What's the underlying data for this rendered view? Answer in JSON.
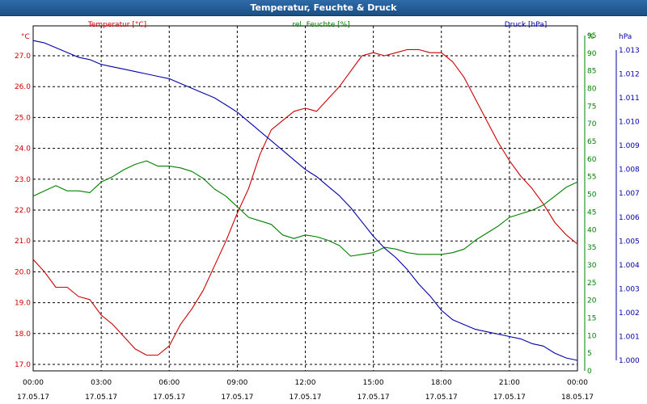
{
  "window": {
    "title": "Temperatur, Feuchte & Druck"
  },
  "chart_data": {
    "type": "line",
    "title": "Temperatur, Feuchte & Druck",
    "x_tick_labels": [
      [
        "00:00",
        "17.05.17"
      ],
      [
        "03:00",
        "17.05.17"
      ],
      [
        "06:00",
        "17.05.17"
      ],
      [
        "09:00",
        "17.05.17"
      ],
      [
        "12:00",
        "17.05.17"
      ],
      [
        "15:00",
        "17.05.17"
      ],
      [
        "18:00",
        "17.05.17"
      ],
      [
        "21:00",
        "17.05.17"
      ],
      [
        "00:00",
        "18.05.17"
      ]
    ],
    "xlim_hours": [
      0,
      24
    ],
    "grid": true,
    "axes": {
      "temperature": {
        "unit_label": "°C",
        "side": "left",
        "color": "#cc0000",
        "ylim": [
          17.0,
          27.5
        ],
        "ticks": [
          "17.0",
          "18.0",
          "19.0",
          "20.0",
          "21.0",
          "22.0",
          "23.0",
          "24.0",
          "25.0",
          "26.0",
          "27.0"
        ]
      },
      "humidity": {
        "unit_label": "%",
        "side": "right",
        "color": "#008000",
        "ylim": [
          0,
          95
        ],
        "ticks": [
          "0",
          "5",
          "10",
          "15",
          "20",
          "25",
          "30",
          "35",
          "40",
          "45",
          "50",
          "55",
          "60",
          "65",
          "70",
          "75",
          "80",
          "85",
          "90",
          "95"
        ]
      },
      "pressure": {
        "unit_label": "hPa",
        "side": "right",
        "color": "#0000aa",
        "ylim": [
          1000,
          1013.4
        ],
        "ticks": [
          "1.000",
          "1.001",
          "1.002",
          "1.003",
          "1.004",
          "1.005",
          "1.006",
          "1.007",
          "1.008",
          "1.009",
          "1.010",
          "1.011",
          "1.012",
          "1.013"
        ]
      }
    },
    "series": [
      {
        "name": "Temperatur [°C]",
        "axis": "temperature",
        "color": "#cc0000",
        "x": [
          0,
          0.5,
          1,
          1.5,
          2,
          2.5,
          3,
          3.5,
          4,
          4.5,
          5,
          5.5,
          6,
          6.5,
          7,
          7.5,
          8,
          8.5,
          9,
          9.5,
          10,
          10.5,
          11,
          11.5,
          12,
          12.5,
          13,
          13.5,
          14,
          14.5,
          15,
          15.5,
          16,
          16.5,
          17,
          17.5,
          18,
          18.5,
          19,
          19.5,
          20,
          20.5,
          21,
          21.5,
          22,
          22.5,
          23,
          23.5,
          24
        ],
        "y": [
          20.4,
          20.0,
          19.5,
          19.5,
          19.2,
          19.1,
          18.6,
          18.3,
          17.9,
          17.5,
          17.3,
          17.3,
          17.6,
          18.3,
          18.8,
          19.4,
          20.2,
          21.0,
          21.9,
          22.7,
          23.8,
          24.6,
          24.9,
          25.2,
          25.3,
          25.2,
          25.6,
          26.0,
          26.5,
          27.0,
          27.1,
          27.0,
          27.1,
          27.2,
          27.2,
          27.1,
          27.1,
          26.8,
          26.3,
          25.6,
          24.9,
          24.2,
          23.6,
          23.1,
          22.7,
          22.2,
          21.6,
          21.2,
          20.9
        ]
      },
      {
        "name": "rel. Feuchte [%]",
        "axis": "humidity",
        "color": "#008000",
        "x": [
          0,
          0.5,
          1,
          1.5,
          2,
          2.5,
          3,
          3.5,
          4,
          4.5,
          5,
          5.5,
          6,
          6.5,
          7,
          7.5,
          8,
          8.5,
          9,
          9.5,
          10,
          10.5,
          11,
          11.5,
          12,
          12.5,
          13,
          13.5,
          14,
          14.5,
          15,
          15.5,
          16,
          16.5,
          17,
          17.5,
          18,
          18.5,
          19,
          19.5,
          20,
          20.5,
          21,
          21.5,
          22,
          22.5,
          23,
          23.5,
          24
        ],
        "y": [
          49.5,
          51.0,
          52.5,
          51.0,
          51.0,
          50.5,
          53.5,
          55.0,
          57.0,
          58.5,
          59.5,
          58.0,
          58.0,
          57.5,
          56.5,
          54.5,
          51.5,
          49.5,
          46.5,
          43.5,
          42.5,
          41.5,
          38.5,
          37.5,
          38.5,
          38.0,
          37.0,
          35.5,
          32.5,
          33.0,
          33.5,
          35.0,
          34.5,
          33.5,
          33.0,
          33.0,
          33.0,
          33.5,
          34.5,
          37.0,
          39.0,
          41.0,
          43.5,
          44.5,
          45.5,
          47.0,
          49.5,
          52.0,
          53.5
        ]
      },
      {
        "name": "Druck [hPa]",
        "axis": "pressure",
        "color": "#0000aa",
        "x": [
          0,
          0.5,
          1,
          1.5,
          2,
          2.5,
          3,
          3.5,
          4,
          4.5,
          5,
          5.5,
          6,
          6.5,
          7,
          7.5,
          8,
          8.5,
          9,
          9.5,
          10,
          10.5,
          11,
          11.5,
          12,
          12.5,
          13,
          13.5,
          14,
          14.5,
          15,
          15.5,
          16,
          16.5,
          17,
          17.5,
          18,
          18.5,
          19,
          19.5,
          20,
          20.5,
          21,
          21.5,
          22,
          22.5,
          23,
          23.5,
          24
        ],
        "y": [
          1013.4,
          1013.3,
          1013.1,
          1012.9,
          1012.7,
          1012.6,
          1012.4,
          1012.3,
          1012.2,
          1012.1,
          1012.0,
          1011.9,
          1011.8,
          1011.6,
          1011.4,
          1011.2,
          1011.0,
          1010.7,
          1010.4,
          1010.0,
          1009.6,
          1009.2,
          1008.8,
          1008.4,
          1008.0,
          1007.7,
          1007.3,
          1006.9,
          1006.4,
          1005.8,
          1005.2,
          1004.7,
          1004.3,
          1003.8,
          1003.2,
          1002.7,
          1002.1,
          1001.7,
          1001.5,
          1001.3,
          1001.2,
          1001.1,
          1001.0,
          1000.9,
          1000.7,
          1000.6,
          1000.3,
          1000.1,
          1000.0
        ]
      }
    ]
  }
}
